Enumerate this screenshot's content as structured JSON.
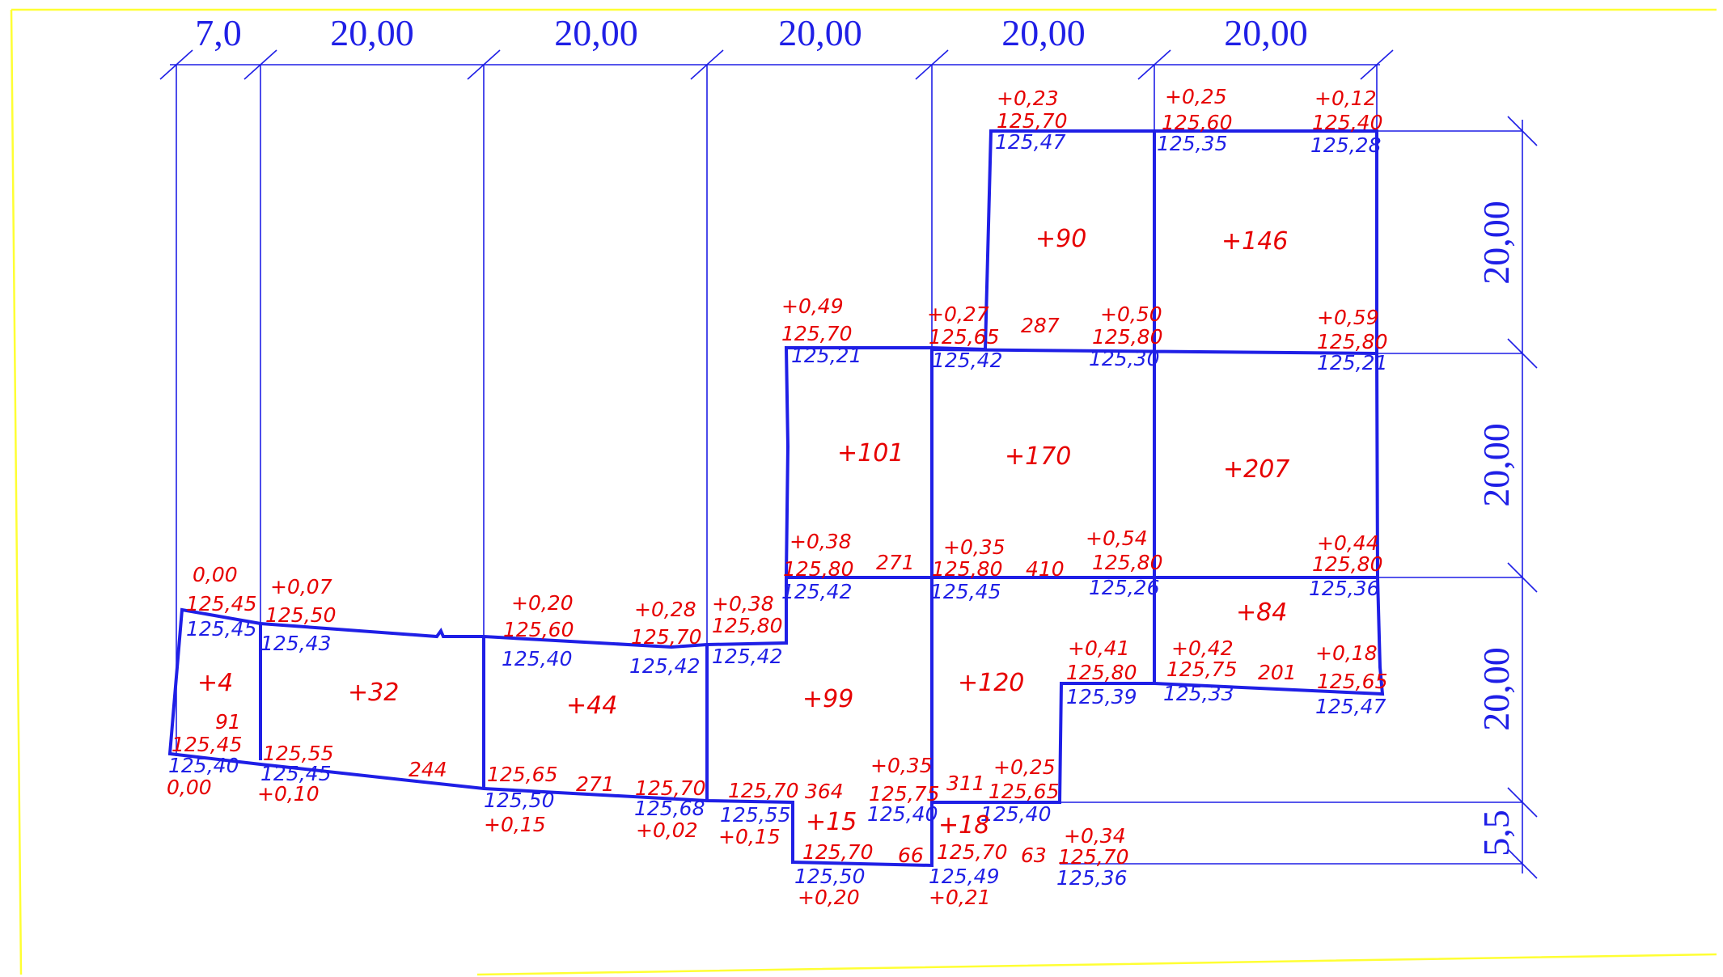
{
  "dimensions": {
    "top": [
      "7,0",
      "20,00",
      "20,00",
      "20,00",
      "20,00",
      "20,00"
    ],
    "right": [
      "20,00",
      "20,00",
      "20,00",
      "5,5"
    ]
  },
  "labels": {
    "l1": "0,00",
    "l2": "125,45",
    "l3": "125,45",
    "l4": "+0,07",
    "l5": "125,50",
    "l6": "125,43",
    "l7": "+0,20",
    "l8": "125,60",
    "l9": "125,40",
    "l10": "+0,28",
    "l11": "125,70",
    "l12": "125,42",
    "l13": "+0,38",
    "l14": "125,80",
    "l15": "125,42",
    "l16": "+0,49",
    "l17": "125,70",
    "l18": "125,21",
    "l19": "+0,38",
    "l20": "125,80",
    "l21": "125,42",
    "l22": "271",
    "l23": "+0,27",
    "l24": "125,65",
    "l25": "125,42",
    "l26": "287",
    "l27": "+0,35",
    "l28": "125,80",
    "l29": "125,45",
    "l30": "410",
    "l31": "+0,23",
    "l32": "125,70",
    "l33": "125,47",
    "l34": "+0,25",
    "l35": "125,60",
    "l36": "125,35",
    "l37": "+0,12",
    "l38": "125,40",
    "l39": "125,28",
    "l40": "+0,50",
    "l41": "125,80",
    "l42": "125,30",
    "l43": "+0,59",
    "l44": "125,80",
    "l45": "125,21",
    "l46": "+0,54",
    "l47": "125,80",
    "l48": "125,26",
    "l49": "+0,44",
    "l50": "125,80",
    "l51": "125,36",
    "l52": "+0,41",
    "l53": "125,80",
    "l54": "125,39",
    "l55": "+0,42",
    "l56": "125,75",
    "l57": "125,33",
    "l58": "201",
    "l59": "+0,18",
    "l60": "125,65",
    "l61": "125,47",
    "l62": "91",
    "l63": "125,45",
    "l64": "125,40",
    "l65": "0,00",
    "l66": "125,55",
    "l67": "125,45",
    "l68": "+0,10",
    "l69": "244",
    "l70": "125,65",
    "l71": "125,50",
    "l72": "+0,15",
    "l73": "271",
    "l74": "125,70",
    "l75": "125,68",
    "l76": "+0,02",
    "l77": "125,70",
    "l78": "125,55",
    "l79": "+0,15",
    "l80": "364",
    "l81": "+0,35",
    "l82": "125,75",
    "l83": "125,40",
    "l84": "311",
    "l85": "+0,25",
    "l86": "125,65",
    "l87": "125,40",
    "l88": "125,70",
    "l89": "125,50",
    "l90": "+0,20",
    "l91": "66",
    "l92": "125,70",
    "l93": "125,49",
    "l94": "+0,21",
    "l95": "63",
    "l96": "+0,34",
    "l97": "125,70",
    "l98": "125,36"
  },
  "volumes": {
    "v1": "+4",
    "v2": "+32",
    "v3": "+44",
    "v4": "+99",
    "v5": "+120",
    "v6": "+101",
    "v7": "+170",
    "v8": "+207",
    "v9": "+90",
    "v10": "+146",
    "v11": "+84",
    "v12": "+15",
    "v13": "+18"
  }
}
